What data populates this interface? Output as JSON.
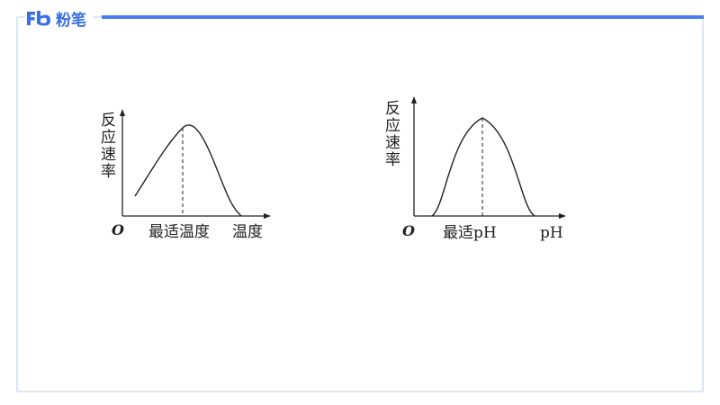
{
  "brand": {
    "name": "粉笔",
    "accent_color": "#4b7df2",
    "logo_icon": "fenbi-logo-icon"
  },
  "diagram_left": {
    "y_label_chars": [
      "反",
      "应",
      "速",
      "率"
    ],
    "origin_label": "O",
    "optimum_label": "最适温度",
    "x_label": "温度"
  },
  "diagram_right": {
    "y_label_chars": [
      "反",
      "应",
      "速",
      "率"
    ],
    "origin_label": "O",
    "optimum_label": "最适pH",
    "x_label": "pH"
  }
}
